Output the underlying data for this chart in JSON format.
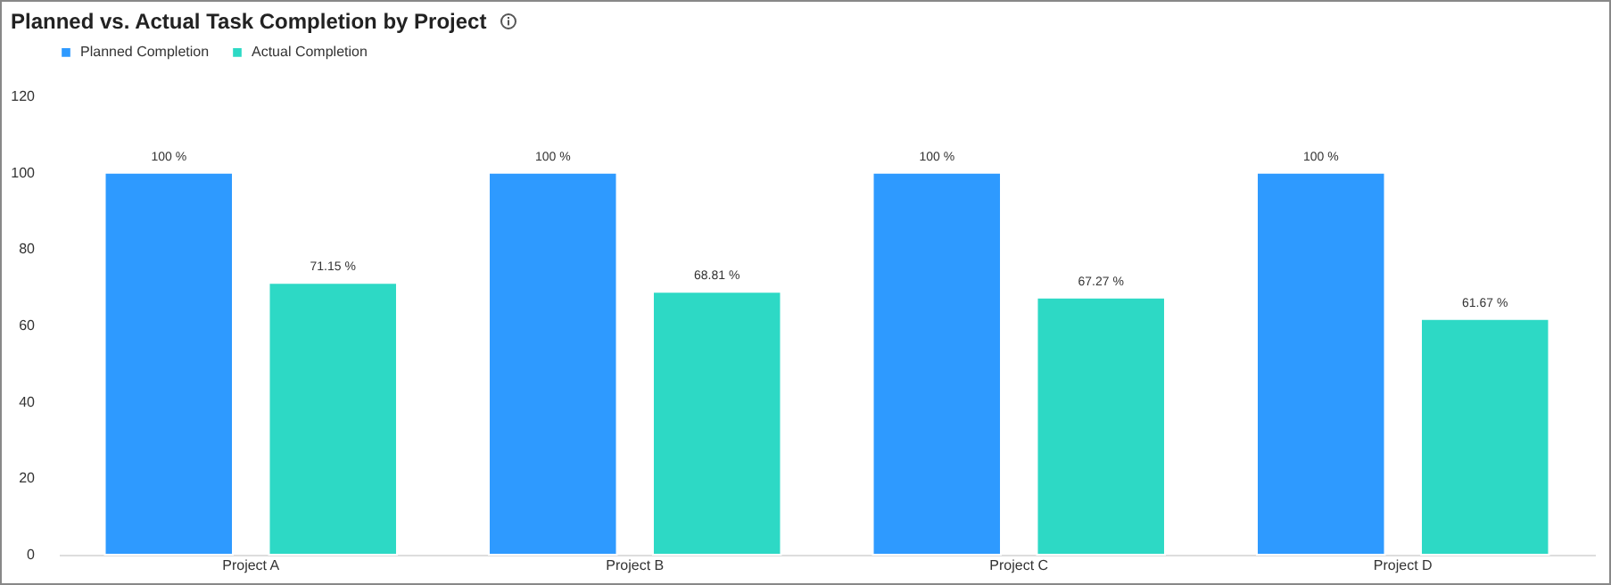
{
  "chart_data": {
    "type": "bar",
    "title": "Planned vs. Actual Task Completion by Project",
    "categories": [
      "Project A",
      "Project B",
      "Project C",
      "Project D"
    ],
    "series": [
      {
        "name": "Planned Completion",
        "color": "#2e9aff",
        "values": [
          100,
          100,
          100,
          100
        ],
        "value_labels": [
          "100 %",
          "100 %",
          "100 %",
          "100 %"
        ]
      },
      {
        "name": "Actual Completion",
        "color": "#2dd9c5",
        "values": [
          71.15,
          68.81,
          67.27,
          61.67
        ],
        "value_labels": [
          "71.15 %",
          "68.81 %",
          "67.27 %",
          "61.67 %"
        ]
      }
    ],
    "ylim": [
      0,
      120
    ],
    "yticks": [
      0,
      20,
      40,
      60,
      80,
      100,
      120
    ],
    "grid": false,
    "legend": "top"
  }
}
